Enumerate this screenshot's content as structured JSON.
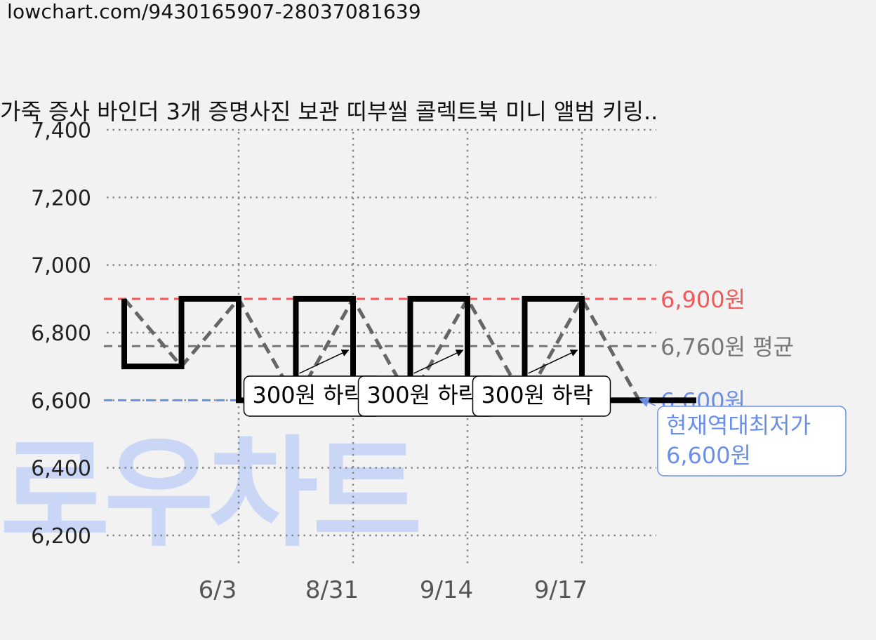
{
  "url": "lowchart.com/9430165907-28037081639",
  "watermark": "로우차트",
  "colors": {
    "max": "#f05a5a",
    "avg": "#777777",
    "min": "#6a8fe8",
    "price": "#000000",
    "trend": "#666666",
    "watermark": "#c9d6f5"
  },
  "chart_data": {
    "type": "line",
    "title": "가죽 증사 바인더 3개 증명사진 보관 띠부씰 콜렉트북 미니 앨범 키링..",
    "ylim": [
      6200,
      7400
    ],
    "yticks": [
      6200,
      6400,
      6600,
      6800,
      7000,
      7200,
      7400
    ],
    "ytick_labels": [
      "6,200",
      "6,400",
      "6,600",
      "6,800",
      "7,000",
      "7,200",
      "7,400"
    ],
    "xtick_labels": [
      "6/3",
      "8/31",
      "9/14",
      "9/17"
    ],
    "xtick_index": [
      2,
      4,
      6,
      8
    ],
    "grid": true,
    "series": [
      {
        "kind": "price-step",
        "points": [
          6900,
          6700,
          6900,
          6600,
          6900,
          6600,
          6900,
          6600,
          6900,
          6600,
          6600
        ]
      },
      {
        "kind": "trend-zigzag",
        "points": [
          6900,
          6700,
          6900,
          6600,
          6900,
          6600,
          6900,
          6600,
          6900,
          6600
        ]
      }
    ],
    "reference_lines": [
      {
        "key": "max",
        "value": 6900,
        "label": "6,900원"
      },
      {
        "key": "avg",
        "value": 6760,
        "label": "6,760원 평균"
      },
      {
        "key": "min",
        "value": 6600,
        "label": "6,600원"
      }
    ],
    "annotations": [
      {
        "text": "300원 하락",
        "at_index": 3
      },
      {
        "text": "300원 하락",
        "at_index": 5
      },
      {
        "text": "300원 하락",
        "at_index": 7
      }
    ],
    "callout": {
      "line1": "현재역대최저가",
      "line2": "6,600원"
    }
  }
}
